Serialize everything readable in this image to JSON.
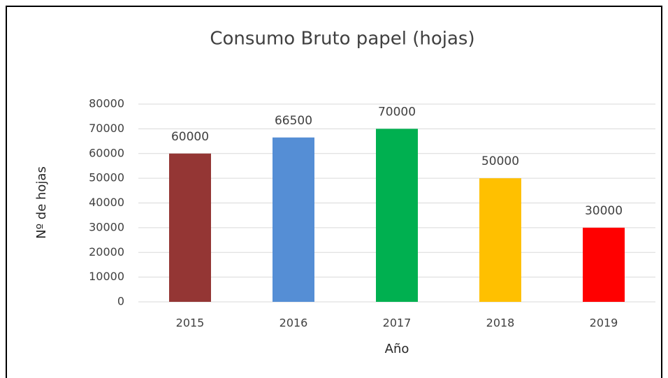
{
  "chart_data": {
    "type": "bar",
    "title": "Consumo Bruto papel (hojas)",
    "categories": [
      "2015",
      "2016",
      "2017",
      "2018",
      "2019"
    ],
    "values": [
      60000,
      66500,
      70000,
      50000,
      30000
    ],
    "colors": [
      "#943634",
      "#558ed5",
      "#00b050",
      "#ffc000",
      "#ff0000"
    ],
    "x_label": "Año",
    "y_label": "Nº de hojas",
    "ylim": [
      0,
      80000
    ],
    "yticks": [
      0,
      10000,
      20000,
      30000,
      40000,
      50000,
      60000,
      70000,
      80000
    ],
    "grid": true
  }
}
